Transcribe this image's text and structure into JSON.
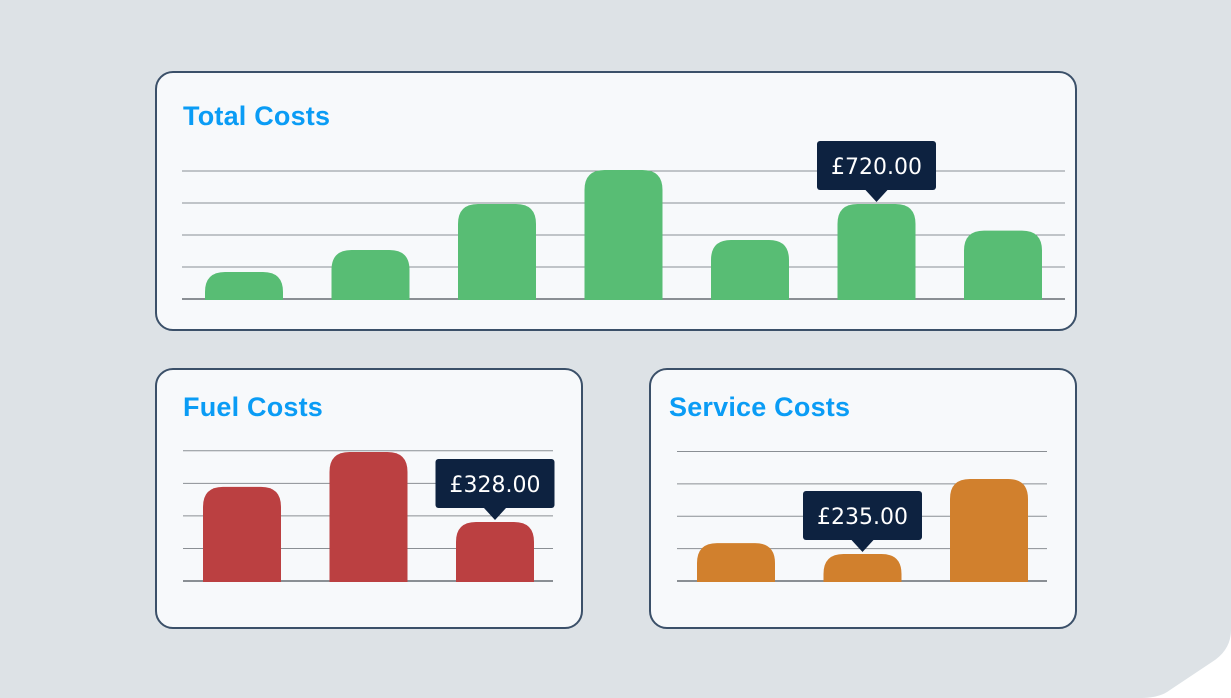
{
  "colors": {
    "background": "#dde2e6",
    "title": "#0a9cf5",
    "tooltip": "#0d2240",
    "grid": "#8a8f94"
  },
  "chart_data": [
    {
      "id": "total",
      "type": "bar",
      "title": "Total Costs",
      "color": "#58bd74",
      "values": [
        210,
        375,
        720,
        975,
        450,
        720,
        520
      ],
      "gridlines": [
        240,
        480,
        720,
        960
      ],
      "ylim": [
        0,
        1110
      ],
      "tooltip": {
        "index": 5,
        "label": "£720.00"
      }
    },
    {
      "id": "fuel",
      "type": "bar",
      "title": "Fuel Costs",
      "color": "#bb4041",
      "values": [
        520,
        711,
        328
      ],
      "gridlines": [
        178,
        356,
        534,
        712
      ],
      "ylim": [
        0,
        738
      ],
      "tooltip": {
        "index": 2,
        "label": "£328.00"
      }
    },
    {
      "id": "service",
      "type": "bar",
      "title": "Service Costs",
      "color": "#d1802d",
      "values": [
        327,
        235,
        865
      ],
      "gridlines": [
        272,
        544,
        816,
        1088
      ],
      "ylim": [
        0,
        1134
      ],
      "tooltip": {
        "index": 1,
        "label": "£235.00"
      }
    }
  ]
}
